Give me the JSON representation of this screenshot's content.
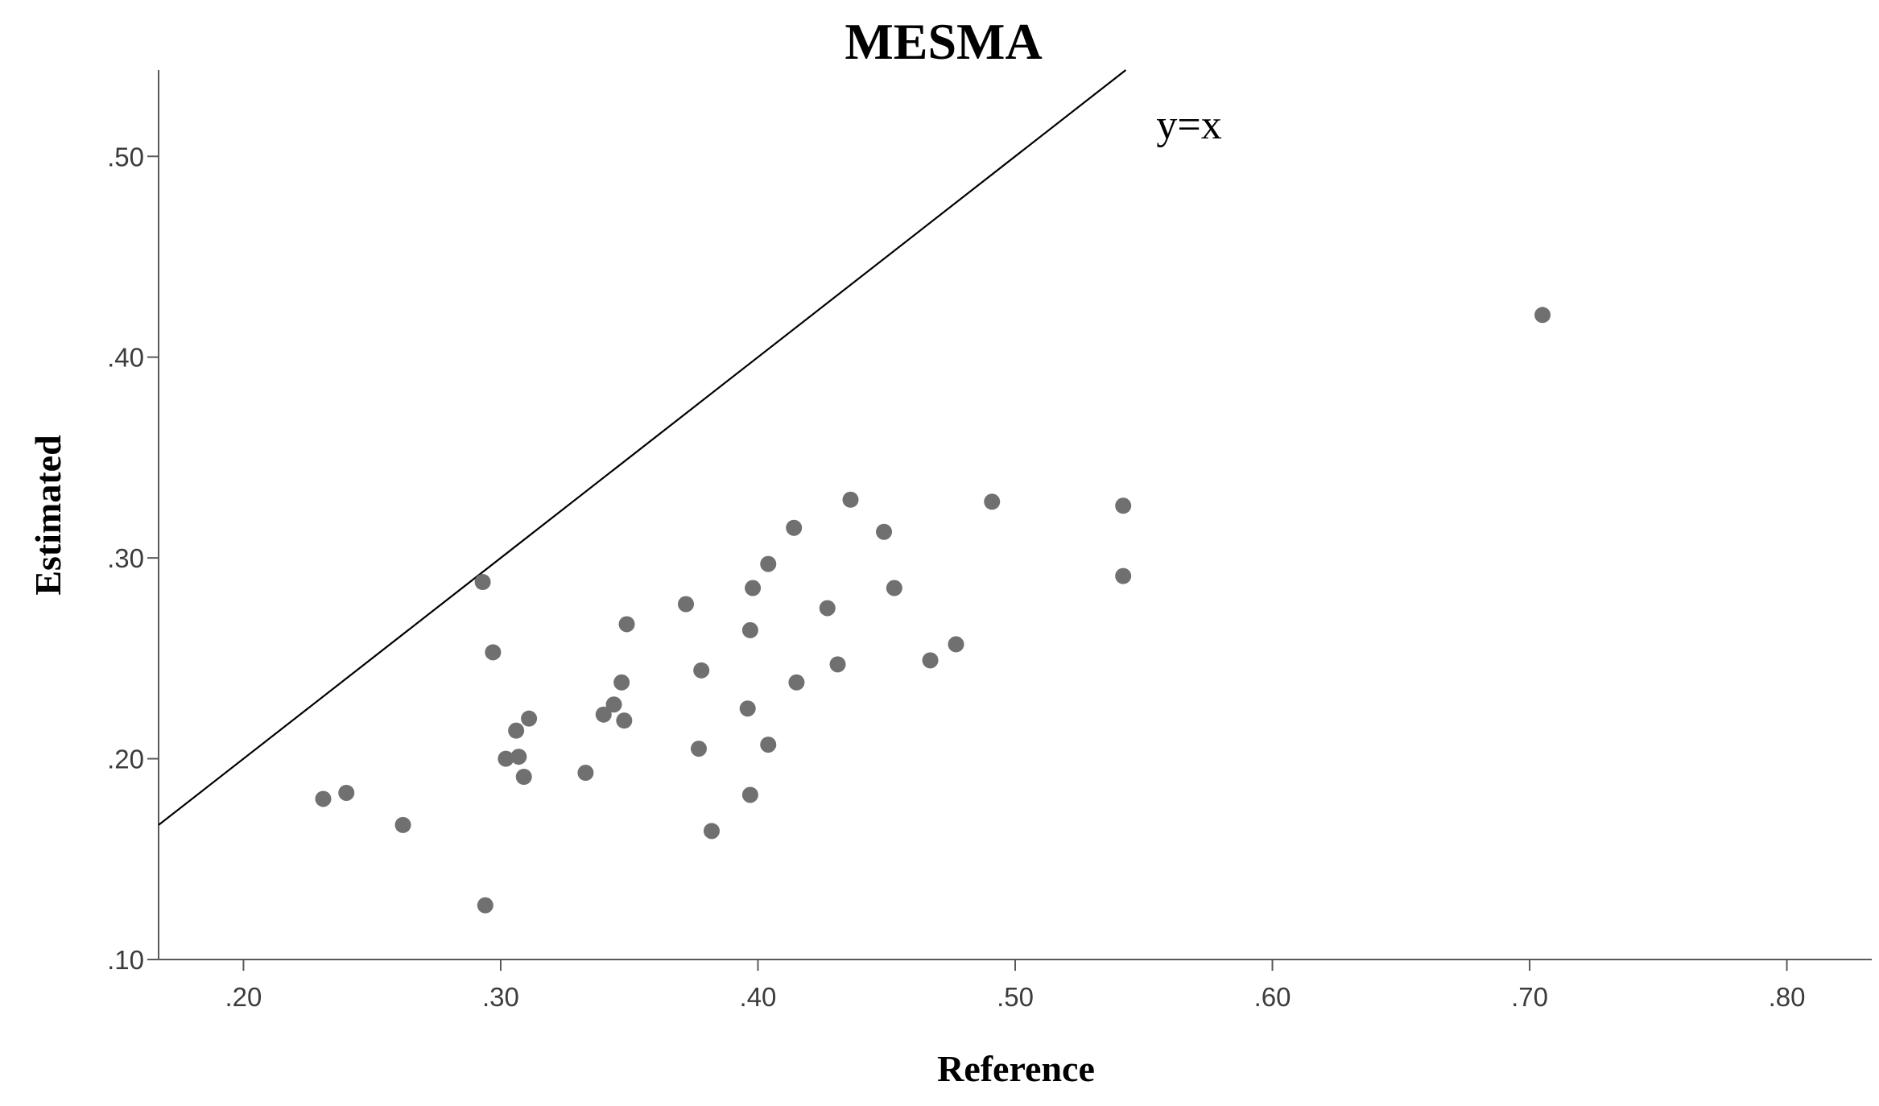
{
  "chart_data": {
    "type": "scatter",
    "title": "MESMA",
    "xlabel": "Reference",
    "ylabel": "Estimated",
    "xlim": [
      0.167,
      0.833
    ],
    "ylim": [
      0.1,
      0.543
    ],
    "x_ticks": [
      ".20",
      ".30",
      ".40",
      ".50",
      ".60",
      ".70",
      ".80"
    ],
    "x_tick_values": [
      0.2,
      0.3,
      0.4,
      0.5,
      0.6,
      0.7,
      0.8
    ],
    "y_ticks": [
      ".10",
      ".20",
      ".30",
      ".40",
      ".50"
    ],
    "y_tick_values": [
      0.1,
      0.2,
      0.3,
      0.4,
      0.5
    ],
    "reference_line": {
      "label": "y=x",
      "slope": 1,
      "intercept": 0
    },
    "grid": false,
    "points": [
      {
        "x": 0.231,
        "y": 0.18
      },
      {
        "x": 0.24,
        "y": 0.183
      },
      {
        "x": 0.262,
        "y": 0.167
      },
      {
        "x": 0.293,
        "y": 0.288
      },
      {
        "x": 0.294,
        "y": 0.127
      },
      {
        "x": 0.297,
        "y": 0.253
      },
      {
        "x": 0.302,
        "y": 0.2
      },
      {
        "x": 0.306,
        "y": 0.214
      },
      {
        "x": 0.307,
        "y": 0.201
      },
      {
        "x": 0.309,
        "y": 0.191
      },
      {
        "x": 0.311,
        "y": 0.22
      },
      {
        "x": 0.333,
        "y": 0.193
      },
      {
        "x": 0.34,
        "y": 0.222
      },
      {
        "x": 0.344,
        "y": 0.227
      },
      {
        "x": 0.347,
        "y": 0.238
      },
      {
        "x": 0.348,
        "y": 0.219
      },
      {
        "x": 0.349,
        "y": 0.267
      },
      {
        "x": 0.372,
        "y": 0.277
      },
      {
        "x": 0.377,
        "y": 0.205
      },
      {
        "x": 0.378,
        "y": 0.244
      },
      {
        "x": 0.382,
        "y": 0.164
      },
      {
        "x": 0.396,
        "y": 0.225
      },
      {
        "x": 0.397,
        "y": 0.264
      },
      {
        "x": 0.397,
        "y": 0.182
      },
      {
        "x": 0.398,
        "y": 0.285
      },
      {
        "x": 0.404,
        "y": 0.297
      },
      {
        "x": 0.404,
        "y": 0.207
      },
      {
        "x": 0.414,
        "y": 0.315
      },
      {
        "x": 0.415,
        "y": 0.238
      },
      {
        "x": 0.427,
        "y": 0.275
      },
      {
        "x": 0.431,
        "y": 0.247
      },
      {
        "x": 0.436,
        "y": 0.329
      },
      {
        "x": 0.449,
        "y": 0.313
      },
      {
        "x": 0.453,
        "y": 0.285
      },
      {
        "x": 0.467,
        "y": 0.249
      },
      {
        "x": 0.477,
        "y": 0.257
      },
      {
        "x": 0.491,
        "y": 0.328
      },
      {
        "x": 0.542,
        "y": 0.326
      },
      {
        "x": 0.542,
        "y": 0.291
      },
      {
        "x": 0.705,
        "y": 0.421
      }
    ]
  }
}
